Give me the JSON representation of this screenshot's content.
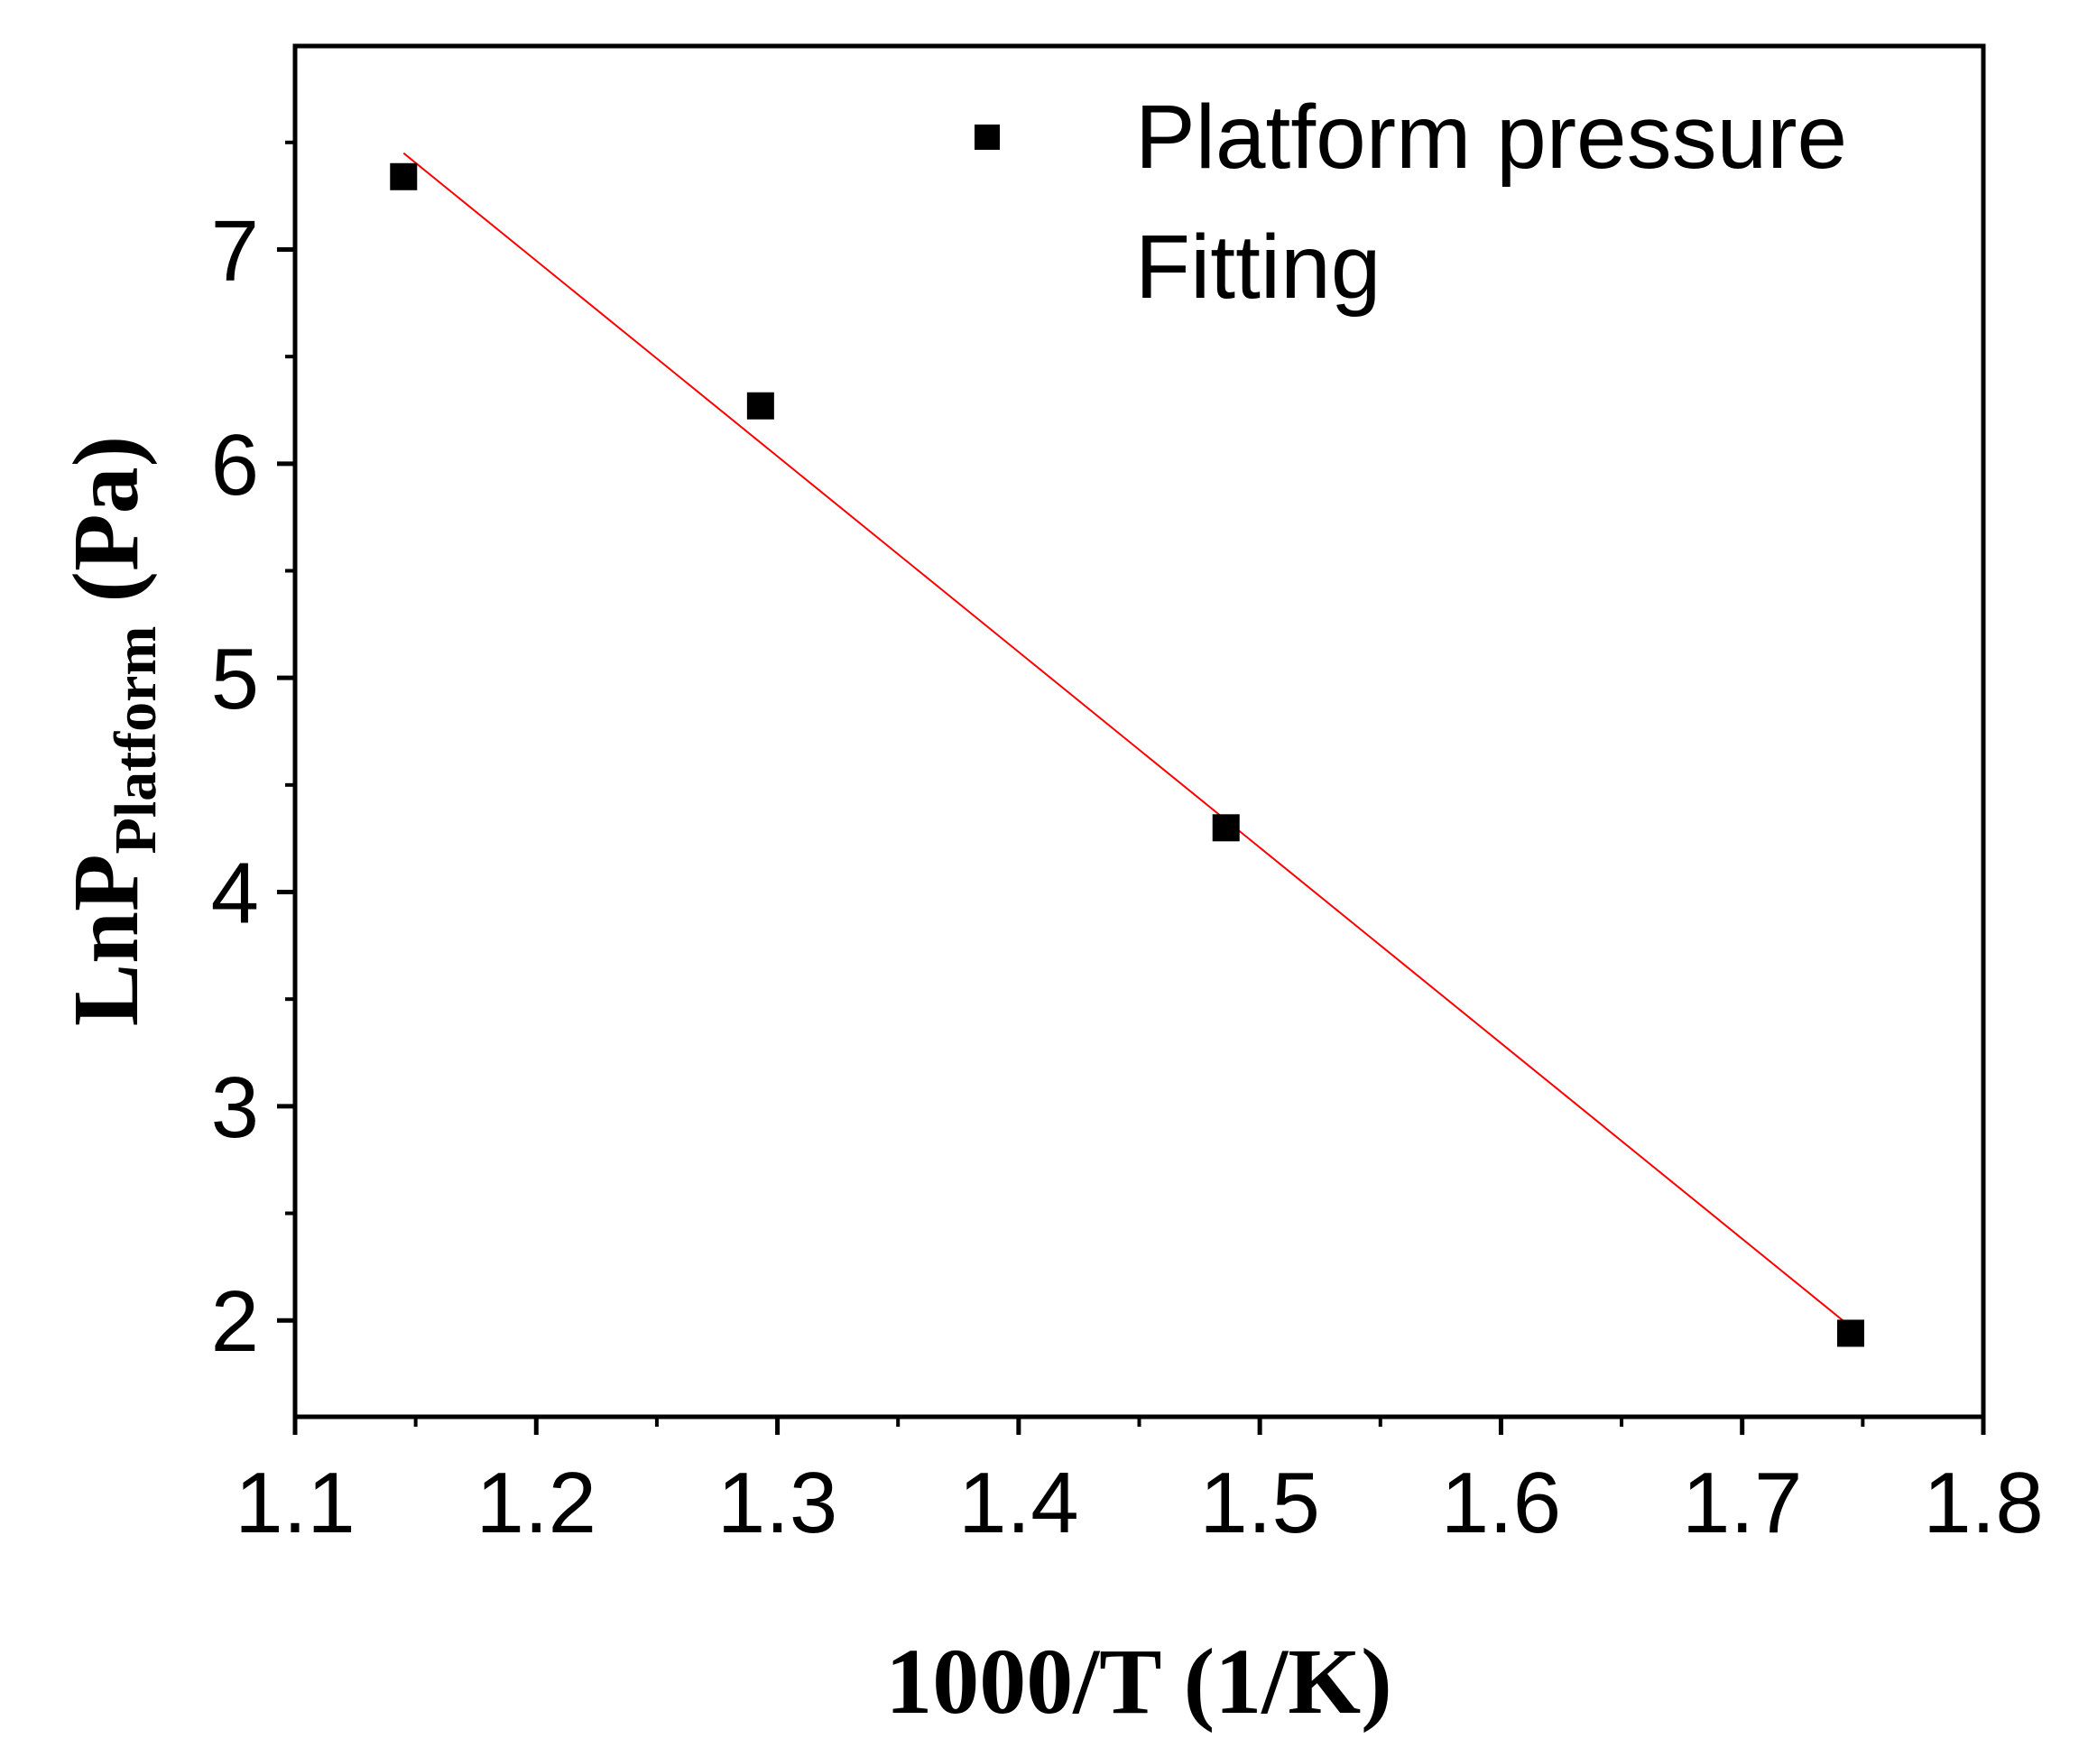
{
  "chart_data": {
    "type": "scatter",
    "xlabel": "1000/T (1/K)",
    "ylabel_main": "LnP",
    "ylabel_sub": "Platform",
    "ylabel_unit": " (Pa)",
    "xlim": [
      1.1,
      1.8
    ],
    "ylim": [
      1.55,
      7.95
    ],
    "x_ticks": [
      1.1,
      1.2,
      1.3,
      1.4,
      1.5,
      1.6,
      1.7,
      1.8
    ],
    "x_tick_labels": [
      "1.1",
      "1.2",
      "1.3",
      "1.4",
      "1.5",
      "1.6",
      "1.7",
      "1.8"
    ],
    "y_ticks": [
      2,
      3,
      4,
      5,
      6,
      7
    ],
    "y_tick_labels": [
      "2",
      "3",
      "4",
      "5",
      "6",
      "7"
    ],
    "grid": false,
    "legend_position": "top-right",
    "series": [
      {
        "name": "Platform pressure",
        "kind": "scatter",
        "marker": "square",
        "color": "#000000",
        "x": [
          1.145,
          1.293,
          1.486,
          1.745
        ],
        "y": [
          7.34,
          6.27,
          4.3,
          1.94
        ]
      },
      {
        "name": "Fitting",
        "kind": "line",
        "color": "#ff0000",
        "x": [
          1.145,
          1.745
        ],
        "y": [
          7.45,
          1.97
        ]
      }
    ]
  }
}
